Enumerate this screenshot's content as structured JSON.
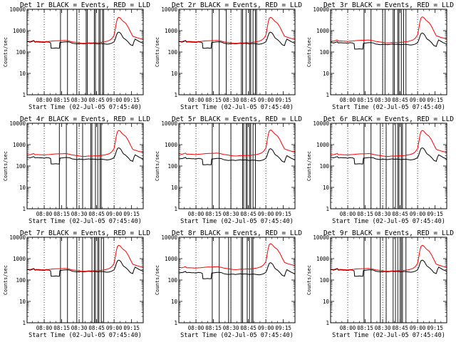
{
  "chart_data": {
    "type": "line",
    "layout": {
      "rows": 3,
      "cols": 3
    },
    "x_tick_labels": [
      "08:00",
      "08:15",
      "08:30",
      "08:45",
      "09:00",
      "09:15"
    ],
    "x_ticks_min": [
      0,
      15,
      30,
      45,
      60,
      75
    ],
    "x_range_min": [
      -14.7,
      85
    ],
    "y_scale": "log",
    "ylim": [
      1,
      10000
    ],
    "y_tick_labels": [
      "1",
      "10",
      "100",
      "1000",
      "10000"
    ],
    "ylabel": "Counts/sec",
    "xlabel": "Start Time (02-Jul-05 07:45:40)",
    "dotted_vertical_lines_min": [
      0,
      30,
      60
    ],
    "series_colors": {
      "events": "#000000",
      "lld": "#ff0000"
    },
    "panels": [
      {
        "title": "Det 1r BLACK = Events, RED = LLD",
        "vlines_min": [
          14,
          20,
          28,
          36,
          37,
          43,
          44,
          47,
          48,
          50,
          51
        ],
        "black_shift": 0,
        "red_shift": 0
      },
      {
        "title": "Det 2r BLACK = Events, RED = LLD",
        "vlines_min": [
          14,
          20,
          26,
          39,
          40,
          43,
          46,
          47,
          49,
          51,
          52
        ],
        "black_shift": 0,
        "red_shift": 0
      },
      {
        "title": "Det 3r BLACK = Events, RED = LLD",
        "vlines_min": [
          14,
          20,
          30,
          32,
          39,
          40,
          43,
          44,
          46,
          48,
          50
        ],
        "black_shift": -0.04,
        "red_shift": 0.02
      },
      {
        "title": "Det 4r BLACK = Events, RED = LLD",
        "vlines_min": [
          13,
          19,
          28,
          33,
          40,
          41,
          44,
          46,
          48,
          49
        ],
        "black_shift": -0.08,
        "red_shift": 0.04
      },
      {
        "title": "Det 5r BLACK = Events, RED = LLD",
        "vlines_min": [
          14,
          20,
          30,
          40,
          41,
          43,
          44,
          46,
          47,
          49,
          51
        ],
        "black_shift": -0.12,
        "red_shift": 0.06
      },
      {
        "title": "Det 6r BLACK = Events, RED = LLD",
        "vlines_min": [
          14,
          20,
          28,
          33,
          39,
          41,
          43,
          44,
          46,
          47,
          50
        ],
        "black_shift": -0.08,
        "red_shift": 0.04
      },
      {
        "title": "Det 7r BLACK = Events, RED = LLD",
        "vlines_min": [
          14,
          20,
          28,
          33,
          41,
          43,
          44,
          46,
          47,
          49,
          51
        ],
        "black_shift": 0,
        "red_shift": 0
      },
      {
        "title": "Det 8r BLACK = Events, RED = LLD",
        "vlines_min": [
          14,
          20,
          28,
          30,
          39,
          40,
          44,
          46,
          48,
          49
        ],
        "black_shift": -0.12,
        "red_shift": 0.08
      },
      {
        "title": "Det 9r BLACK = Events, RED = LLD",
        "vlines_min": [
          14,
          20,
          28,
          33,
          39,
          41,
          43,
          45,
          46,
          47,
          50
        ],
        "black_shift": 0,
        "red_shift": 0
      }
    ],
    "black_series_min_counts": [
      [
        -14.7,
        310
      ],
      [
        -12,
        290
      ],
      [
        -9,
        330
      ],
      [
        -8,
        290
      ],
      [
        -6,
        300
      ],
      [
        -4,
        290
      ],
      [
        -2,
        290
      ],
      [
        0,
        280
      ],
      [
        2,
        300
      ],
      [
        4,
        290
      ],
      [
        5.5,
        270
      ],
      [
        6,
        150
      ],
      [
        8,
        150
      ],
      [
        10,
        155
      ],
      [
        12,
        150
      ],
      [
        13,
        150
      ],
      [
        13.5,
        280
      ],
      [
        16,
        290
      ],
      [
        18,
        300
      ],
      [
        20,
        300
      ],
      [
        22,
        290
      ],
      [
        24,
        260
      ],
      [
        26,
        250
      ],
      [
        28,
        240
      ],
      [
        30,
        250
      ],
      [
        32,
        250
      ],
      [
        34,
        240
      ],
      [
        36,
        250
      ],
      [
        38,
        260
      ],
      [
        40,
        250
      ],
      [
        42,
        255
      ],
      [
        44,
        250
      ],
      [
        46,
        240
      ],
      [
        48,
        250
      ],
      [
        50,
        250
      ],
      [
        52,
        240
      ],
      [
        54,
        230
      ],
      [
        56,
        240
      ],
      [
        58,
        260
      ],
      [
        60,
        300
      ],
      [
        61,
        400
      ],
      [
        62,
        600
      ],
      [
        63,
        800
      ],
      [
        64,
        850
      ],
      [
        65,
        800
      ],
      [
        66,
        700
      ],
      [
        67,
        550
      ],
      [
        68,
        450
      ],
      [
        70,
        380
      ],
      [
        72,
        300
      ],
      [
        74,
        220
      ],
      [
        76,
        200
      ],
      [
        77,
        300
      ],
      [
        78,
        400
      ],
      [
        80,
        350
      ],
      [
        82,
        300
      ],
      [
        84,
        270
      ],
      [
        85,
        250
      ]
    ],
    "red_series_min_counts": [
      [
        -14.7,
        320
      ],
      [
        -12,
        310
      ],
      [
        -9,
        350
      ],
      [
        -8,
        310
      ],
      [
        -6,
        315
      ],
      [
        -4,
        310
      ],
      [
        -2,
        305
      ],
      [
        0,
        300
      ],
      [
        2,
        310
      ],
      [
        4,
        315
      ],
      [
        6,
        320
      ],
      [
        8,
        330
      ],
      [
        10,
        335
      ],
      [
        12,
        340
      ],
      [
        14,
        340
      ],
      [
        16,
        345
      ],
      [
        18,
        350
      ],
      [
        20,
        340
      ],
      [
        22,
        320
      ],
      [
        24,
        300
      ],
      [
        26,
        290
      ],
      [
        28,
        280
      ],
      [
        30,
        270
      ],
      [
        32,
        260
      ],
      [
        34,
        255
      ],
      [
        36,
        260
      ],
      [
        38,
        270
      ],
      [
        40,
        265
      ],
      [
        42,
        270
      ],
      [
        44,
        275
      ],
      [
        46,
        270
      ],
      [
        48,
        280
      ],
      [
        50,
        290
      ],
      [
        52,
        300
      ],
      [
        54,
        320
      ],
      [
        56,
        350
      ],
      [
        58,
        420
      ],
      [
        60,
        600
      ],
      [
        61,
        1200
      ],
      [
        62,
        2500
      ],
      [
        63,
        3800
      ],
      [
        64,
        4200
      ],
      [
        65,
        4000
      ],
      [
        66,
        3500
      ],
      [
        67,
        3000
      ],
      [
        68,
        2700
      ],
      [
        70,
        2200
      ],
      [
        72,
        1500
      ],
      [
        74,
        900
      ],
      [
        76,
        550
      ],
      [
        78,
        500
      ],
      [
        80,
        460
      ],
      [
        82,
        430
      ],
      [
        84,
        410
      ],
      [
        85,
        400
      ]
    ]
  }
}
